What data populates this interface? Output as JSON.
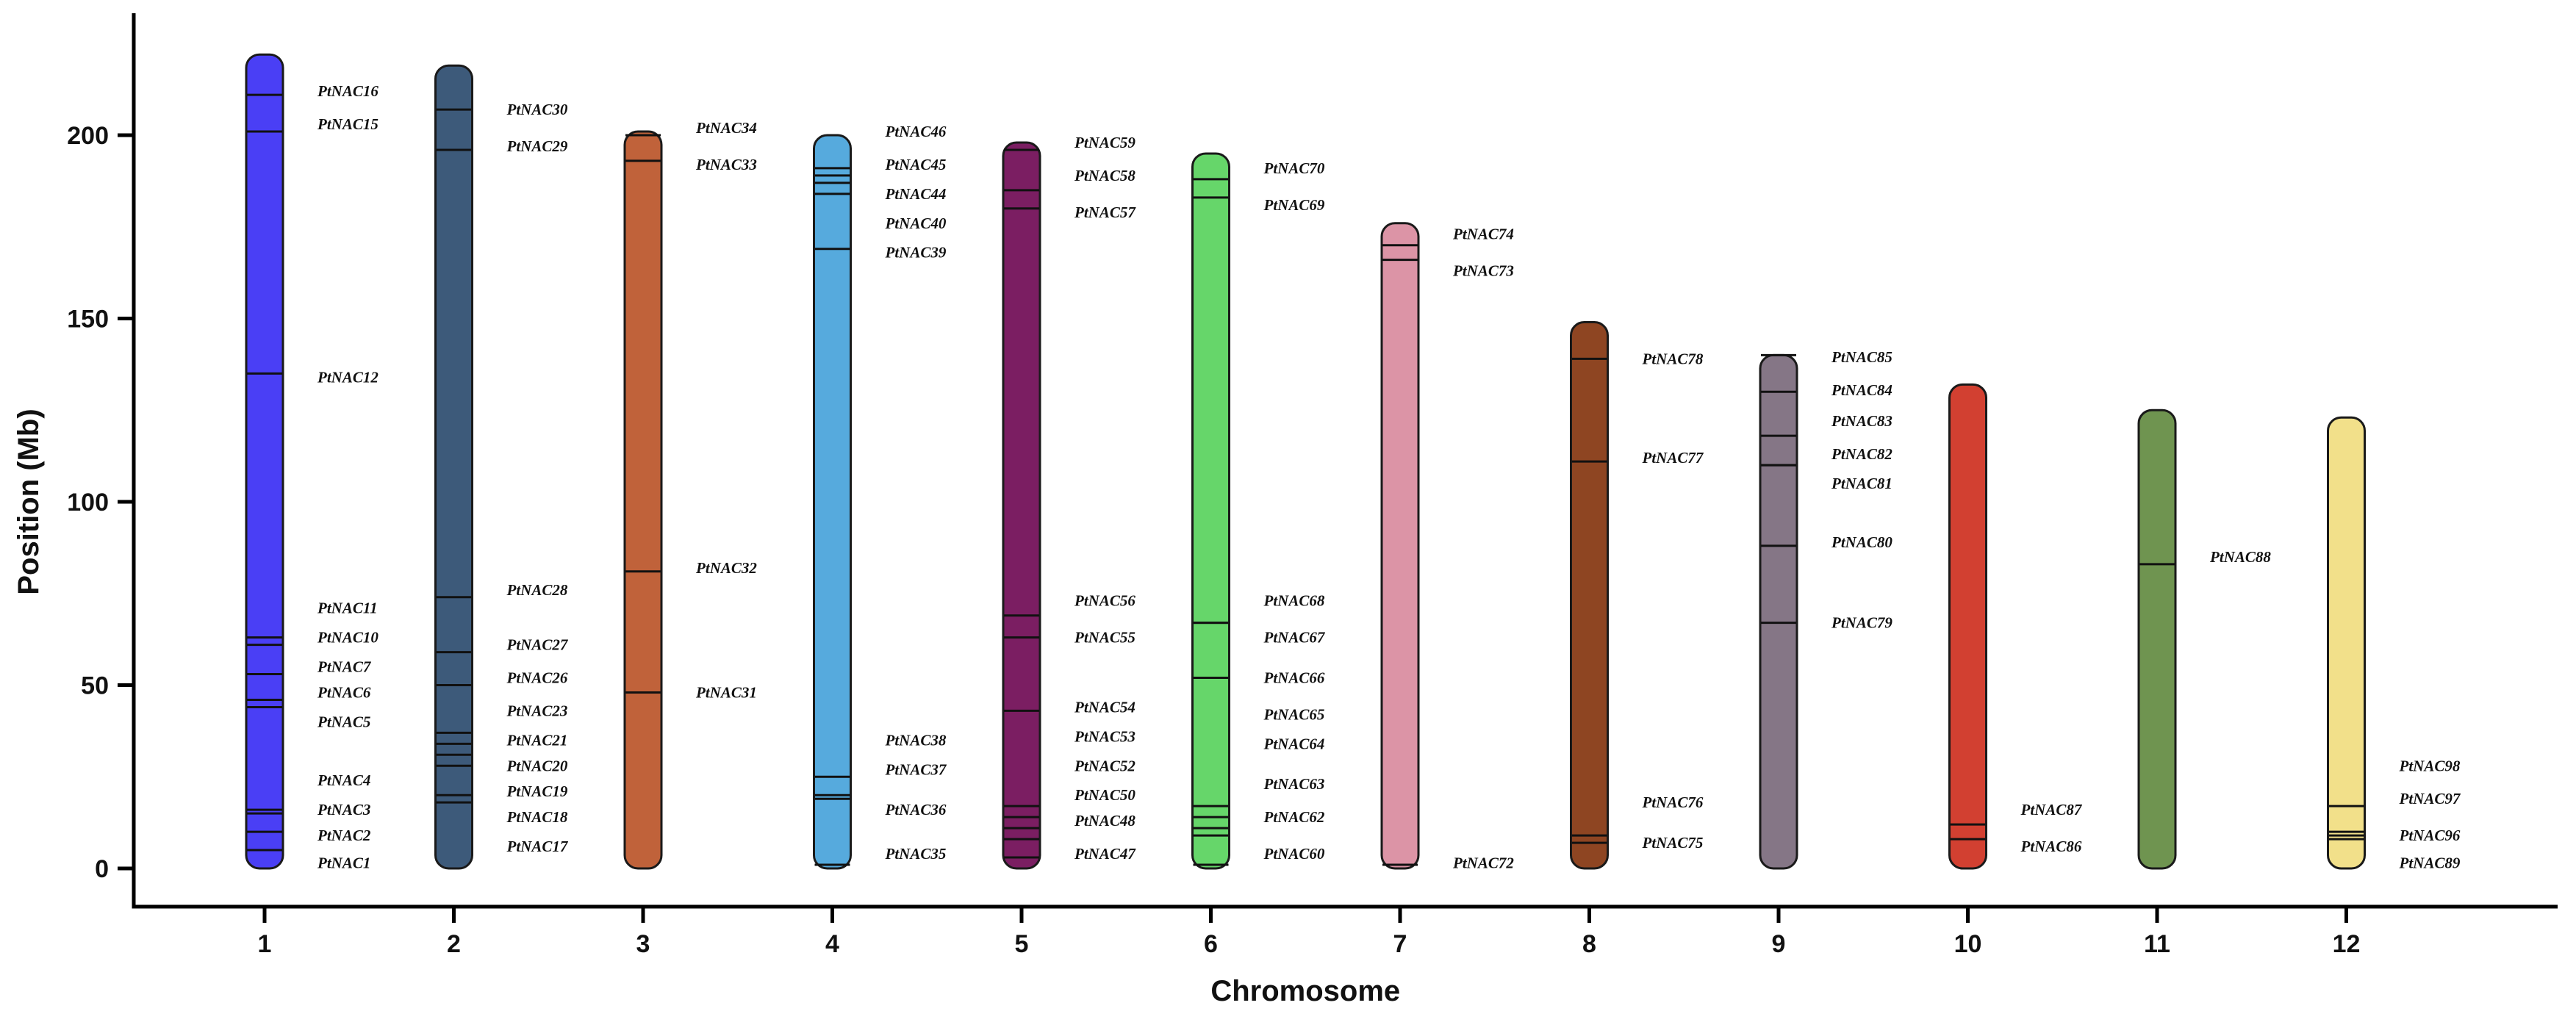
{
  "chart_data": {
    "type": "chromosome_map",
    "xlabel": "Chromosome",
    "ylabel": "Position (Mb)",
    "ylim": [
      0,
      230
    ],
    "yticks": [
      0,
      50,
      100,
      150,
      200
    ],
    "chromosomes": [
      {
        "name": "1",
        "length": 222,
        "color": "#4a3ff5",
        "genes": [
          {
            "label": "PtNAC16",
            "pos": 211,
            "label_pos": 212
          },
          {
            "label": "PtNAC15",
            "pos": 201,
            "label_pos": 203
          },
          {
            "label": "PtNAC12",
            "pos": 135,
            "label_pos": 134
          },
          {
            "label": "PtNAC11",
            "pos": 63,
            "label_pos": 71
          },
          {
            "label": "PtNAC10",
            "pos": 61,
            "label_pos": 63
          },
          {
            "label": "PtNAC7",
            "pos": 53,
            "label_pos": 55
          },
          {
            "label": "PtNAC6",
            "pos": 46,
            "label_pos": 48
          },
          {
            "label": "PtNAC5",
            "pos": 44,
            "label_pos": 40
          },
          {
            "label": "PtNAC4",
            "pos": 16,
            "label_pos": 24
          },
          {
            "label": "PtNAC3",
            "pos": 15,
            "label_pos": 16
          },
          {
            "label": "PtNAC2",
            "pos": 10,
            "label_pos": 9
          },
          {
            "label": "PtNAC1",
            "pos": 5,
            "label_pos": 1.5
          }
        ]
      },
      {
        "name": "2",
        "length": 219,
        "color": "#3d5a7a",
        "genes": [
          {
            "label": "PtNAC30",
            "pos": 207,
            "label_pos": 207
          },
          {
            "label": "PtNAC29",
            "pos": 196,
            "label_pos": 197
          },
          {
            "label": "PtNAC28",
            "pos": 74,
            "label_pos": 76
          },
          {
            "label": "PtNAC27",
            "pos": 59,
            "label_pos": 61
          },
          {
            "label": "PtNAC26",
            "pos": 50,
            "label_pos": 52
          },
          {
            "label": "PtNAC23",
            "pos": 37,
            "label_pos": 43
          },
          {
            "label": "PtNAC21",
            "pos": 34,
            "label_pos": 35
          },
          {
            "label": "PtNAC20",
            "pos": 31,
            "label_pos": 28
          },
          {
            "label": "PtNAC19",
            "pos": 28,
            "label_pos": 21
          },
          {
            "label": "PtNAC18",
            "pos": 20,
            "label_pos": 14
          },
          {
            "label": "PtNAC17",
            "pos": 18,
            "label_pos": 6
          }
        ]
      },
      {
        "name": "3",
        "length": 201,
        "color": "#c0623a",
        "genes": [
          {
            "label": "PtNAC34",
            "pos": 200,
            "label_pos": 202
          },
          {
            "label": "PtNAC33",
            "pos": 193,
            "label_pos": 192
          },
          {
            "label": "PtNAC32",
            "pos": 81,
            "label_pos": 82
          },
          {
            "label": "PtNAC31",
            "pos": 48,
            "label_pos": 48
          }
        ]
      },
      {
        "name": "4",
        "length": 200,
        "color": "#56aadd",
        "genes": [
          {
            "label": "PtNAC46",
            "pos": 191,
            "label_pos": 201
          },
          {
            "label": "PtNAC45",
            "pos": 189,
            "label_pos": 192
          },
          {
            "label": "PtNAC44",
            "pos": 187,
            "label_pos": 184
          },
          {
            "label": "PtNAC40",
            "pos": 184,
            "label_pos": 176
          },
          {
            "label": "PtNAC39",
            "pos": 169,
            "label_pos": 168
          },
          {
            "label": "PtNAC38",
            "pos": 25,
            "label_pos": 35
          },
          {
            "label": "PtNAC37",
            "pos": 20,
            "label_pos": 27
          },
          {
            "label": "PtNAC36",
            "pos": 19,
            "label_pos": 16
          },
          {
            "label": "PtNAC35",
            "pos": 1,
            "label_pos": 4
          }
        ]
      },
      {
        "name": "5",
        "length": 198,
        "color": "#7b1e62",
        "genes": [
          {
            "label": "PtNAC59",
            "pos": 196,
            "label_pos": 198
          },
          {
            "label": "PtNAC58",
            "pos": 185,
            "label_pos": 189
          },
          {
            "label": "PtNAC57",
            "pos": 180,
            "label_pos": 179
          },
          {
            "label": "PtNAC56",
            "pos": 69,
            "label_pos": 73
          },
          {
            "label": "PtNAC55",
            "pos": 63,
            "label_pos": 63
          },
          {
            "label": "PtNAC54",
            "pos": 43,
            "label_pos": 44
          },
          {
            "label": "PtNAC53",
            "pos": 17,
            "label_pos": 36
          },
          {
            "label": "PtNAC52",
            "pos": 14,
            "label_pos": 28
          },
          {
            "label": "PtNAC50",
            "pos": 11,
            "label_pos": 20
          },
          {
            "label": "PtNAC48",
            "pos": 8,
            "label_pos": 13
          },
          {
            "label": "PtNAC47",
            "pos": 3,
            "label_pos": 4
          }
        ]
      },
      {
        "name": "6",
        "length": 195,
        "color": "#66d66a",
        "genes": [
          {
            "label": "PtNAC70",
            "pos": 188,
            "label_pos": 191
          },
          {
            "label": "PtNAC69",
            "pos": 183,
            "label_pos": 181
          },
          {
            "label": "PtNAC68",
            "pos": 67,
            "label_pos": 73
          },
          {
            "label": "PtNAC67",
            "pos": 67,
            "label_pos": 63
          },
          {
            "label": "PtNAC66",
            "pos": 52,
            "label_pos": 52
          },
          {
            "label": "PtNAC65",
            "pos": 17,
            "label_pos": 42
          },
          {
            "label": "PtNAC64",
            "pos": 14,
            "label_pos": 34
          },
          {
            "label": "PtNAC63",
            "pos": 11,
            "label_pos": 23
          },
          {
            "label": "PtNAC62",
            "pos": 9,
            "label_pos": 14
          },
          {
            "label": "PtNAC60",
            "pos": 1,
            "label_pos": 4
          }
        ]
      },
      {
        "name": "7",
        "length": 176,
        "color": "#dc94a6",
        "genes": [
          {
            "label": "PtNAC74",
            "pos": 170,
            "label_pos": 173
          },
          {
            "label": "PtNAC73",
            "pos": 166,
            "label_pos": 163
          },
          {
            "label": "PtNAC72",
            "pos": 1,
            "label_pos": 1.5
          }
        ]
      },
      {
        "name": "8",
        "length": 149,
        "color": "#8e4522",
        "genes": [
          {
            "label": "PtNAC78",
            "pos": 139,
            "label_pos": 139
          },
          {
            "label": "PtNAC77",
            "pos": 111,
            "label_pos": 112
          },
          {
            "label": "PtNAC76",
            "pos": 9,
            "label_pos": 18
          },
          {
            "label": "PtNAC75",
            "pos": 7,
            "label_pos": 7
          }
        ]
      },
      {
        "name": "9",
        "length": 140,
        "color": "#857686",
        "genes": [
          {
            "label": "PtNAC85",
            "pos": 140,
            "label_pos": 139.5
          },
          {
            "label": "PtNAC84",
            "pos": 130,
            "label_pos": 130.5
          },
          {
            "label": "PtNAC83",
            "pos": 118,
            "label_pos": 122
          },
          {
            "label": "PtNAC82",
            "pos": 110,
            "label_pos": 113
          },
          {
            "label": "PtNAC81",
            "pos": 110,
            "label_pos": 105
          },
          {
            "label": "PtNAC80",
            "pos": 88,
            "label_pos": 89
          },
          {
            "label": "PtNAC79",
            "pos": 67,
            "label_pos": 67
          }
        ]
      },
      {
        "name": "10",
        "length": 132,
        "color": "#d24031",
        "genes": [
          {
            "label": "PtNAC87",
            "pos": 12,
            "label_pos": 16
          },
          {
            "label": "PtNAC86",
            "pos": 8,
            "label_pos": 6
          }
        ]
      },
      {
        "name": "11",
        "length": 125,
        "color": "#6f9450",
        "genes": [
          {
            "label": "PtNAC88",
            "pos": 83,
            "label_pos": 85
          }
        ]
      },
      {
        "name": "12",
        "length": 123,
        "color": "#f2e08a",
        "genes": [
          {
            "label": "PtNAC98",
            "pos": 17,
            "label_pos": 28
          },
          {
            "label": "PtNAC97",
            "pos": 10,
            "label_pos": 19
          },
          {
            "label": "PtNAC96",
            "pos": 9,
            "label_pos": 9
          },
          {
            "label": "PtNAC89",
            "pos": 8,
            "label_pos": 1.5
          }
        ]
      }
    ]
  }
}
